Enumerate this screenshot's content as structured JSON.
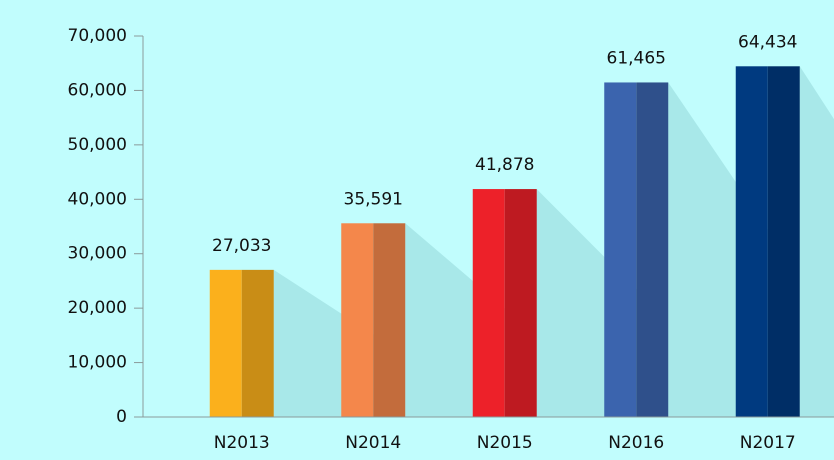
{
  "chart_data": {
    "type": "bar",
    "categories": [
      "N2013",
      "N2014",
      "N2015",
      "N2016",
      "N2017"
    ],
    "values": [
      27033,
      35591,
      41878,
      61465,
      64434
    ],
    "value_labels": [
      "27,033",
      "35,591",
      "41,878",
      "61,465",
      "64,434"
    ],
    "colors": [
      "#fbb01c",
      "#f4874b",
      "#ed2129",
      "#3b64ae",
      "#003a80"
    ],
    "ylim": [
      0,
      70000
    ],
    "yticks": [
      0,
      {
        "value": 10000,
        "label": "10,000"
      },
      {
        "value": 20000,
        "label": "20,000"
      },
      {
        "value": 30000,
        "label": "30,000"
      },
      {
        "value": 40000,
        "label": "40,000"
      },
      {
        "value": 50000,
        "label": "50,000"
      },
      {
        "value": 60000,
        "label": "60,000"
      },
      {
        "value": 70000,
        "label": "70,000"
      }
    ]
  }
}
